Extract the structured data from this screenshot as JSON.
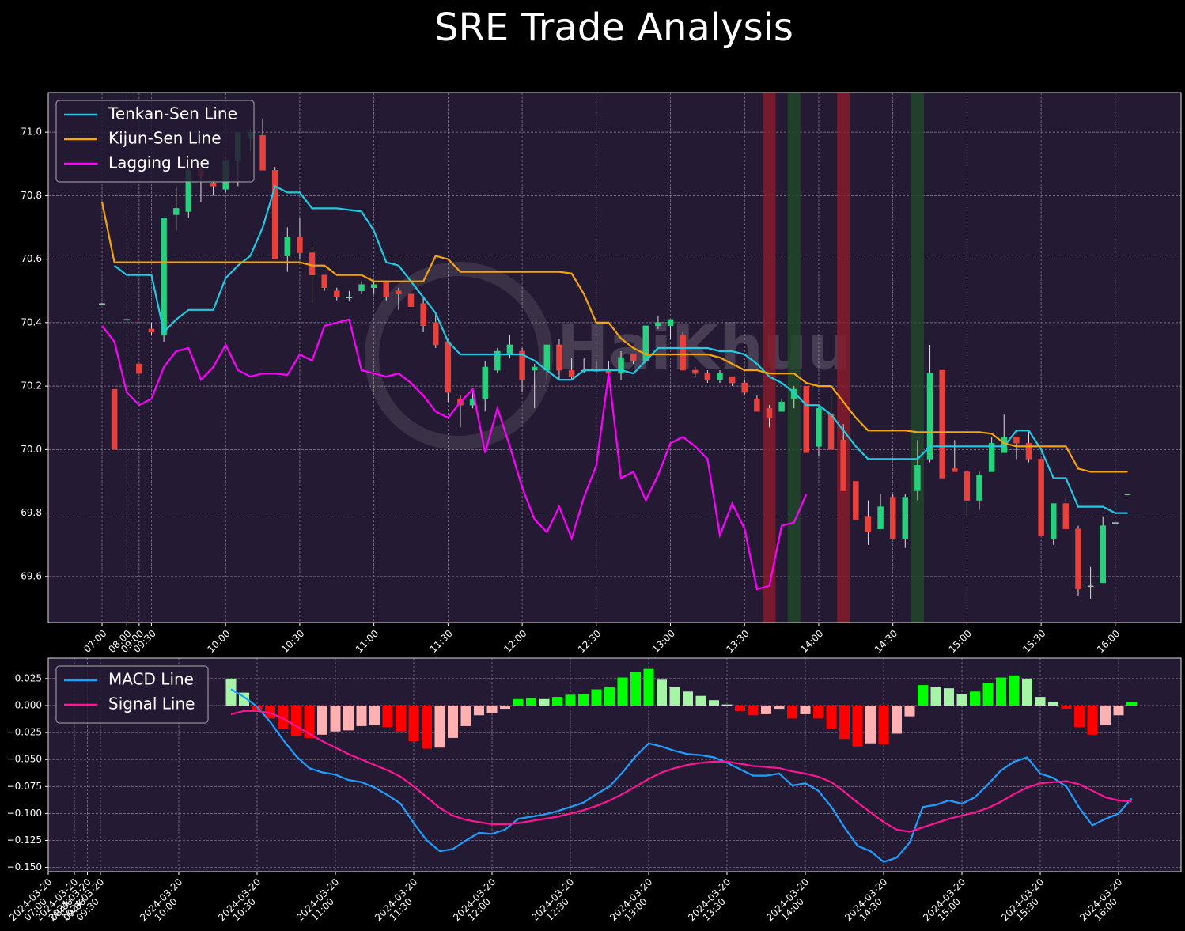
{
  "chart_data": [
    {
      "type": "candlestick",
      "title": "SRE Trade Analysis",
      "watermark": "HaiKhuu",
      "categories": [
        "07:00",
        null,
        "08:00",
        "09:00",
        "09:30",
        null,
        null,
        null,
        null,
        null,
        "10:00",
        null,
        null,
        null,
        null,
        null,
        "10:30",
        null,
        null,
        null,
        null,
        null,
        "11:00",
        null,
        null,
        null,
        null,
        null,
        "11:30",
        null,
        null,
        null,
        null,
        null,
        "12:00",
        null,
        null,
        null,
        null,
        null,
        "12:30",
        null,
        null,
        null,
        null,
        null,
        "13:00",
        null,
        null,
        null,
        null,
        null,
        "13:30",
        null,
        null,
        null,
        null,
        null,
        "14:00",
        null,
        null,
        null,
        null,
        null,
        "14:30",
        null,
        null,
        null,
        null,
        null,
        "15:00",
        null,
        null,
        null,
        null,
        null,
        "15:30",
        null,
        null,
        null,
        null,
        null,
        "16:00",
        null
      ],
      "open": [
        70.46,
        70.19,
        70.41,
        70.27,
        70.38,
        70.36,
        70.74,
        70.75,
        70.88,
        70.84,
        70.82,
        70.91,
        70.98,
        70.99,
        70.88,
        70.61,
        70.67,
        70.62,
        70.55,
        70.5,
        70.48,
        70.5,
        70.51,
        70.53,
        70.5,
        70.49,
        70.46,
        70.4,
        70.34,
        70.16,
        70.14,
        70.16,
        70.25,
        70.3,
        70.31,
        70.25,
        70.25,
        70.33,
        70.25,
        70.25,
        70.25,
        70.25,
        70.24,
        70.3,
        70.28,
        70.39,
        70.39,
        70.36,
        70.25,
        70.24,
        70.22,
        70.23,
        70.21,
        70.16,
        70.13,
        70.12,
        70.16,
        70.2,
        70.01,
        70.11,
        70.03,
        69.9,
        69.79,
        69.75,
        69.85,
        69.72,
        69.87,
        69.97,
        70.25,
        69.94,
        69.93,
        69.84,
        69.93,
        69.99,
        70.04,
        70.02,
        69.97,
        69.72,
        69.83,
        69.75,
        69.57,
        69.58,
        69.77,
        69.86
      ],
      "high": [
        70.46,
        70.19,
        70.41,
        70.27,
        70.4,
        70.73,
        70.83,
        70.89,
        70.9,
        70.85,
        70.92,
        71.0,
        71.01,
        71.04,
        70.89,
        70.7,
        70.73,
        70.64,
        70.55,
        70.51,
        70.5,
        70.53,
        70.53,
        70.53,
        70.51,
        70.49,
        70.48,
        70.43,
        70.35,
        70.17,
        70.18,
        70.28,
        70.32,
        70.36,
        70.32,
        70.27,
        70.33,
        70.35,
        70.29,
        70.29,
        70.28,
        70.28,
        70.31,
        70.3,
        70.39,
        70.42,
        70.41,
        70.37,
        70.26,
        70.25,
        70.25,
        70.23,
        70.22,
        70.17,
        70.14,
        70.16,
        70.2,
        70.2,
        70.14,
        70.17,
        70.08,
        69.9,
        69.84,
        69.86,
        69.86,
        69.86,
        70.03,
        70.33,
        70.25,
        70.03,
        69.93,
        69.93,
        70.04,
        70.11,
        70.04,
        70.06,
        69.97,
        69.83,
        69.85,
        69.76,
        69.63,
        69.79,
        69.77,
        69.86
      ],
      "low": [
        70.46,
        70.0,
        70.41,
        70.24,
        70.36,
        70.34,
        70.69,
        70.73,
        70.78,
        70.8,
        70.81,
        70.83,
        70.94,
        70.88,
        70.6,
        70.56,
        70.6,
        70.46,
        70.5,
        70.47,
        70.47,
        70.49,
        70.49,
        70.47,
        70.44,
        70.43,
        70.37,
        70.32,
        70.15,
        70.07,
        70.13,
        70.12,
        70.24,
        70.29,
        70.18,
        70.13,
        70.22,
        70.22,
        70.22,
        70.24,
        70.24,
        70.23,
        70.22,
        70.27,
        70.27,
        70.38,
        70.35,
        70.25,
        70.23,
        70.21,
        70.21,
        70.2,
        70.17,
        70.12,
        70.07,
        70.12,
        70.13,
        69.99,
        69.98,
        70.0,
        69.87,
        69.78,
        69.7,
        69.75,
        69.72,
        69.69,
        69.84,
        69.96,
        69.91,
        69.93,
        69.79,
        69.81,
        69.93,
        69.99,
        69.97,
        69.96,
        69.73,
        69.7,
        69.75,
        69.54,
        69.53,
        69.58,
        69.77,
        69.86
      ],
      "close": [
        70.46,
        70.0,
        70.41,
        70.24,
        70.37,
        70.73,
        70.76,
        70.88,
        70.86,
        70.83,
        70.91,
        71.0,
        71.0,
        70.88,
        70.6,
        70.67,
        70.62,
        70.55,
        70.51,
        70.48,
        70.48,
        70.52,
        70.52,
        70.48,
        70.49,
        70.45,
        70.39,
        70.33,
        70.18,
        70.14,
        70.16,
        70.26,
        70.31,
        70.33,
        70.22,
        70.26,
        70.33,
        70.25,
        70.23,
        70.25,
        70.25,
        70.24,
        70.29,
        70.28,
        70.39,
        70.4,
        70.41,
        70.25,
        70.24,
        70.22,
        70.24,
        70.21,
        70.18,
        70.12,
        70.1,
        70.15,
        70.19,
        69.99,
        70.13,
        70.0,
        69.87,
        69.78,
        69.74,
        69.82,
        69.72,
        69.85,
        69.95,
        70.24,
        69.91,
        69.93,
        69.84,
        69.92,
        70.02,
        70.04,
        70.02,
        69.97,
        69.73,
        69.83,
        69.75,
        69.56,
        69.57,
        69.76,
        69.77,
        69.86
      ],
      "up_color": "#26d07c",
      "down_color": "#e8413c",
      "series": [
        {
          "name": "Tenkan-Sen Line",
          "color": "#1ecbe1",
          "values": [
            null,
            70.58,
            70.55,
            70.55,
            70.55,
            70.37,
            70.41,
            70.44,
            70.44,
            70.44,
            70.54,
            70.58,
            70.61,
            70.7,
            70.83,
            70.81,
            70.81,
            70.76,
            70.76,
            70.76,
            70.755,
            70.75,
            70.69,
            70.59,
            70.58,
            70.53,
            70.48,
            70.43,
            70.34,
            70.3,
            70.3,
            70.3,
            70.3,
            70.3,
            70.3,
            70.28,
            70.25,
            70.22,
            70.22,
            70.25,
            70.25,
            70.25,
            70.25,
            70.24,
            70.28,
            70.32,
            70.32,
            70.32,
            70.32,
            70.32,
            70.31,
            70.31,
            70.3,
            70.27,
            70.23,
            70.21,
            70.18,
            70.14,
            70.14,
            70.11,
            70.06,
            70.01,
            69.97,
            69.97,
            69.97,
            69.97,
            69.97,
            70.01,
            70.01,
            70.01,
            70.01,
            70.01,
            70.01,
            70.01,
            70.06,
            70.06,
            70.0,
            69.91,
            69.91,
            69.82,
            69.82,
            69.82,
            69.8,
            69.8
          ]
        },
        {
          "name": "Kijun-Sen Line",
          "color": "#f5a40c",
          "values": [
            70.78,
            70.59,
            70.59,
            70.59,
            70.59,
            70.59,
            70.59,
            70.59,
            70.59,
            70.59,
            70.59,
            70.59,
            70.59,
            70.59,
            70.59,
            70.59,
            70.59,
            70.58,
            70.58,
            70.55,
            70.55,
            70.55,
            70.53,
            70.53,
            70.53,
            70.53,
            70.53,
            70.61,
            70.6,
            70.56,
            70.56,
            70.56,
            70.56,
            70.56,
            70.56,
            70.56,
            70.56,
            70.56,
            70.555,
            70.49,
            70.4,
            70.4,
            70.35,
            70.32,
            70.3,
            70.3,
            70.3,
            70.3,
            70.3,
            70.3,
            70.29,
            70.27,
            70.25,
            70.25,
            70.24,
            70.24,
            70.24,
            70.21,
            70.2,
            70.2,
            70.15,
            70.1,
            70.06,
            70.06,
            70.06,
            70.06,
            70.055,
            70.055,
            70.055,
            70.055,
            70.055,
            70.055,
            70.05,
            70.02,
            70.01,
            70.01,
            70.01,
            70.01,
            70.01,
            69.94,
            69.93,
            69.93,
            69.93,
            69.93
          ]
        },
        {
          "name": "Lagging Line",
          "color": "#ff00ff",
          "values": [
            70.39,
            70.34,
            70.18,
            70.14,
            70.16,
            70.26,
            70.31,
            70.32,
            70.22,
            70.26,
            70.33,
            70.25,
            70.23,
            70.24,
            70.24,
            70.235,
            70.3,
            70.28,
            70.39,
            70.4,
            70.41,
            70.25,
            70.24,
            70.23,
            70.24,
            70.21,
            70.17,
            70.12,
            70.1,
            70.15,
            70.19,
            69.99,
            70.13,
            70.01,
            69.88,
            69.78,
            69.74,
            69.82,
            69.72,
            69.85,
            69.95,
            70.24,
            69.91,
            69.93,
            69.84,
            69.92,
            70.02,
            70.04,
            70.01,
            69.97,
            69.73,
            69.83,
            69.75,
            69.56,
            69.57,
            69.76,
            69.77,
            69.86,
            null,
            null,
            null,
            null,
            null,
            null,
            null,
            null,
            null,
            null,
            null,
            null,
            null,
            null,
            null,
            null,
            null,
            null,
            null,
            null,
            null,
            null,
            null,
            null,
            null,
            null
          ]
        }
      ],
      "highlights": [
        {
          "index": 54,
          "color": "#8b1a2b"
        },
        {
          "index": 56,
          "color": "#1f4a2a"
        },
        {
          "index": 60,
          "color": "#8b1a2b"
        },
        {
          "index": 66,
          "color": "#1f4a2a"
        }
      ],
      "ylim": [
        69.455,
        71.125
      ],
      "yticks": [
        69.6,
        69.8,
        {
          "value": 70,
          "label": "70.0"
        },
        70.2,
        70.4,
        70.6,
        70.8,
        {
          "value": 71,
          "label": "71.0"
        }
      ],
      "grid": true,
      "legend": "upper left"
    },
    {
      "type": "macd",
      "date": "2024-03-20",
      "categories": [
        "07:00",
        null,
        "08:00",
        "09:00",
        "09:30",
        null,
        null,
        null,
        null,
        null,
        "10:00",
        null,
        null,
        null,
        null,
        null,
        "10:30",
        null,
        null,
        null,
        null,
        null,
        "11:00",
        null,
        null,
        null,
        null,
        null,
        "11:30",
        null,
        null,
        null,
        null,
        null,
        "12:00",
        null,
        null,
        null,
        null,
        null,
        "12:30",
        null,
        null,
        null,
        null,
        null,
        "13:00",
        null,
        null,
        null,
        null,
        null,
        "13:30",
        null,
        null,
        null,
        null,
        null,
        "14:00",
        null,
        null,
        null,
        null,
        null,
        "14:30",
        null,
        null,
        null,
        null,
        null,
        "15:00",
        null,
        null,
        null,
        null,
        null,
        "15:30",
        null,
        null,
        null,
        null,
        null,
        "16:00",
        null
      ],
      "histogram": [
        null,
        null,
        null,
        null,
        null,
        null,
        null,
        null,
        null,
        null,
        null,
        null,
        null,
        null,
        0.025,
        0.012,
        -0.004,
        -0.012,
        -0.022,
        -0.028,
        -0.03,
        -0.027,
        -0.024,
        -0.023,
        -0.019,
        -0.018,
        -0.02,
        -0.024,
        -0.033,
        -0.04,
        -0.039,
        -0.03,
        -0.019,
        -0.009,
        -0.007,
        -0.003,
        0.006,
        0.007,
        0.006,
        0.008,
        0.01,
        0.011,
        0.015,
        0.017,
        0.026,
        0.031,
        0.034,
        0.024,
        0.017,
        0.013,
        0.009,
        0.005,
        0.001,
        -0.005,
        -0.009,
        -0.008,
        -0.003,
        -0.012,
        -0.008,
        -0.012,
        -0.022,
        -0.031,
        -0.038,
        -0.035,
        -0.036,
        -0.026,
        -0.01,
        0.019,
        0.017,
        0.016,
        0.011,
        0.013,
        0.021,
        0.026,
        0.028,
        0.025,
        0.008,
        0.003,
        -0.003,
        -0.02,
        -0.027,
        -0.018,
        -0.009,
        0.003
      ],
      "hist_colors": {
        "positive_rising": "#00ff00",
        "positive_falling": "#a6f5a6",
        "negative_falling": "#ff0000",
        "negative_rising": "#ffb0b0"
      },
      "series": [
        {
          "name": "MACD Line",
          "color": "#1e9fff",
          "values": [
            null,
            null,
            null,
            null,
            null,
            null,
            null,
            null,
            null,
            null,
            null,
            null,
            null,
            null,
            0.015,
            0.008,
            -0.001,
            -0.015,
            -0.032,
            -0.047,
            -0.058,
            -0.062,
            -0.064,
            -0.069,
            -0.071,
            -0.076,
            -0.083,
            -0.091,
            -0.109,
            -0.125,
            -0.135,
            -0.133,
            -0.125,
            -0.118,
            -0.119,
            -0.115,
            -0.105,
            -0.103,
            -0.101,
            -0.098,
            -0.094,
            -0.09,
            -0.082,
            -0.075,
            -0.062,
            -0.047,
            -0.035,
            -0.038,
            -0.042,
            -0.045,
            -0.046,
            -0.048,
            -0.053,
            -0.059,
            -0.065,
            -0.065,
            -0.063,
            -0.074,
            -0.072,
            -0.079,
            -0.094,
            -0.113,
            -0.13,
            -0.135,
            -0.145,
            -0.141,
            -0.127,
            -0.094,
            -0.092,
            -0.088,
            -0.091,
            -0.085,
            -0.073,
            -0.06,
            -0.052,
            -0.048,
            -0.063,
            -0.067,
            -0.075,
            -0.095,
            -0.111,
            -0.105,
            -0.1,
            -0.086
          ]
        },
        {
          "name": "Signal Line",
          "color": "#ff1493",
          "values": [
            null,
            null,
            null,
            null,
            null,
            null,
            null,
            null,
            null,
            null,
            null,
            null,
            null,
            null,
            -0.008,
            -0.005,
            -0.005,
            -0.007,
            -0.012,
            -0.019,
            -0.026,
            -0.033,
            -0.039,
            -0.045,
            -0.05,
            -0.055,
            -0.06,
            -0.066,
            -0.075,
            -0.085,
            -0.095,
            -0.102,
            -0.106,
            -0.108,
            -0.11,
            -0.11,
            -0.109,
            -0.107,
            -0.105,
            -0.103,
            -0.1,
            -0.097,
            -0.093,
            -0.088,
            -0.082,
            -0.075,
            -0.068,
            -0.062,
            -0.058,
            -0.055,
            -0.053,
            -0.052,
            -0.052,
            -0.054,
            -0.056,
            -0.057,
            -0.058,
            -0.061,
            -0.063,
            -0.066,
            -0.071,
            -0.08,
            -0.09,
            -0.099,
            -0.108,
            -0.115,
            -0.117,
            -0.113,
            -0.109,
            -0.105,
            -0.102,
            -0.099,
            -0.095,
            -0.089,
            -0.082,
            -0.076,
            -0.072,
            -0.071,
            -0.07,
            -0.073,
            -0.079,
            -0.085,
            -0.088,
            -0.089
          ]
        }
      ],
      "ylim": [
        -0.154,
        0.044
      ],
      "yticks": [
        {
          "value": 0.025,
          "label": "0.025"
        },
        {
          "value": 0,
          "label": "0.000"
        },
        {
          "value": -0.025,
          "label": "−0.025"
        },
        {
          "value": -0.05,
          "label": "−0.050"
        },
        {
          "value": -0.075,
          "label": "−0.075"
        },
        {
          "value": -0.1,
          "label": "−0.100"
        },
        {
          "value": -0.125,
          "label": "−0.125"
        },
        {
          "value": -0.15,
          "label": "−0.150"
        }
      ],
      "grid": true,
      "legend": "upper left"
    }
  ]
}
